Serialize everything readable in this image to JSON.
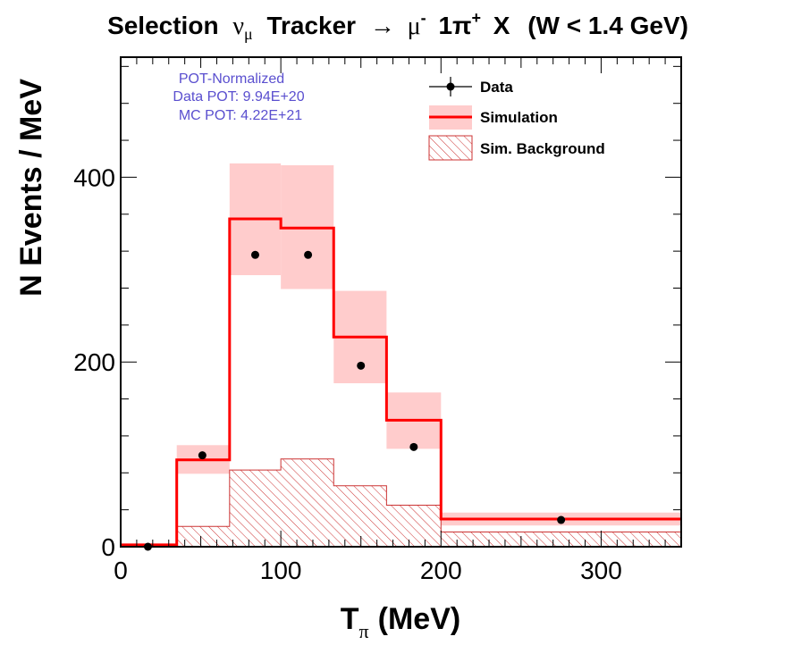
{
  "chart_data": {
    "type": "histogram",
    "title_parts": {
      "prefix": "Selection",
      "nu": "ν",
      "nu_sub": "μ",
      "tracker": "Tracker",
      "arrow": "→",
      "mu": "μ",
      "mu_sup": "-",
      "onepi": "1π",
      "onepi_sup": "+",
      "x": "X",
      "cut": "(W < 1.4 GeV)"
    },
    "xlabel_parts": {
      "T": "T",
      "sub": "π",
      "unit": "(MeV)"
    },
    "ylabel": "N Events / MeV",
    "xlim": [
      0,
      350
    ],
    "ylim": [
      0,
      530
    ],
    "xticks": [
      0,
      100,
      200,
      300
    ],
    "yticks": [
      0,
      200,
      400
    ],
    "bin_edges": [
      0,
      35,
      68,
      100,
      133,
      166,
      200,
      350
    ],
    "simulation": [
      2,
      94,
      355,
      345,
      227,
      137,
      30
    ],
    "simulation_band_low": [
      1,
      79,
      294,
      279,
      177,
      106,
      23
    ],
    "simulation_band_high": [
      3,
      110,
      415,
      413,
      277,
      167,
      37
    ],
    "background": [
      0,
      22,
      83,
      95,
      66,
      45,
      16
    ],
    "data": {
      "x": [
        17,
        51,
        84,
        117,
        150,
        183,
        275
      ],
      "y": [
        0,
        99,
        316,
        316,
        196,
        108,
        29
      ]
    },
    "legend": [
      {
        "label": "Data",
        "style": "marker-line"
      },
      {
        "label": "Simulation",
        "style": "line-band"
      },
      {
        "label": "Sim. Background",
        "style": "hatched"
      }
    ],
    "legend_position": "top-right",
    "annotations": [
      "POT-Normalized",
      "Data POT: 9.94E+20",
      "MC POT: 4.22E+21"
    ],
    "colors": {
      "simulation_line": "#ff0000",
      "simulation_band": "#ffcccc",
      "background_hatch": "#cc3333",
      "data_marker": "#000000",
      "annotation": "#5a4fcf"
    }
  }
}
